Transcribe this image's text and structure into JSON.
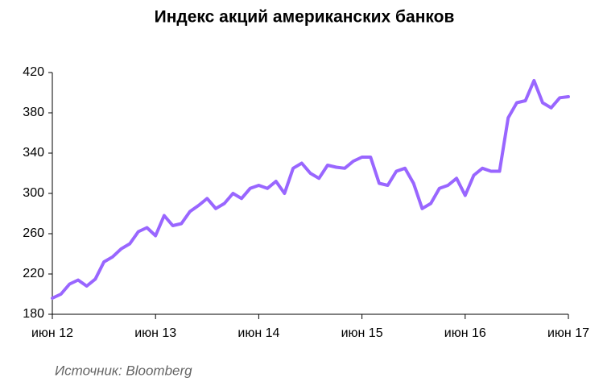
{
  "chart_data": {
    "type": "line",
    "title": "Индекс акций американских банков",
    "source": "Источник: Bloomberg",
    "categories": [
      "июн 12",
      null,
      null,
      null,
      null,
      null,
      null,
      null,
      null,
      null,
      null,
      null,
      "июн 13",
      null,
      null,
      null,
      null,
      null,
      null,
      null,
      null,
      null,
      null,
      null,
      "июн 14",
      null,
      null,
      null,
      null,
      null,
      null,
      null,
      null,
      null,
      null,
      null,
      "июн 15",
      null,
      null,
      null,
      null,
      null,
      null,
      null,
      null,
      null,
      null,
      null,
      "июн 16",
      null,
      null,
      null,
      null,
      null,
      null,
      null,
      null,
      null,
      null,
      null,
      "июн 17"
    ],
    "series": [
      {
        "color": "#9966ff",
        "values": [
          196,
          200,
          210,
          214,
          208,
          215,
          232,
          237,
          245,
          250,
          262,
          266,
          258,
          278,
          268,
          270,
          282,
          288,
          295,
          285,
          290,
          300,
          295,
          305,
          308,
          305,
          312,
          300,
          325,
          330,
          320,
          315,
          328,
          326,
          325,
          332,
          336,
          336,
          310,
          308,
          322,
          325,
          310,
          285,
          290,
          305,
          308,
          315,
          298,
          318,
          325,
          322,
          322,
          375,
          390,
          392,
          412,
          390,
          385,
          395,
          396
        ]
      }
    ],
    "ylim": [
      180,
      420
    ],
    "yticks": [
      180,
      220,
      260,
      300,
      340,
      380,
      420
    ],
    "grid": false
  }
}
